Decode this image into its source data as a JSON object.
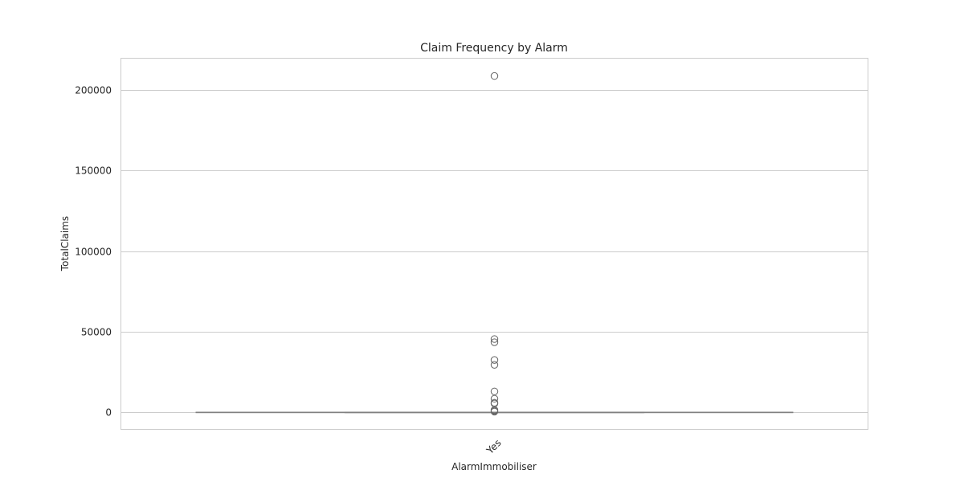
{
  "chart_data": {
    "type": "box",
    "title": "Claim Frequency by Alarm",
    "xlabel": "AlarmImmobiliser",
    "ylabel": "TotalClaims",
    "categories": [
      "Yes"
    ],
    "ylim": [
      -10500,
      219500
    ],
    "yticks": [
      0,
      50000,
      100000,
      150000,
      200000
    ],
    "grid": true,
    "box": {
      "whisker_low": 0,
      "q1": 0,
      "median": 0,
      "q3": 0,
      "whisker_high": 0
    },
    "outliers": [
      208500,
      45500,
      43500,
      32500,
      29500,
      13000,
      8500,
      6000,
      5500,
      1500,
      1000,
      500
    ],
    "colors": {
      "box": "#808080",
      "grid": "#cccccc",
      "spine": "#cccccc",
      "outlier_edge": "#666666"
    }
  }
}
